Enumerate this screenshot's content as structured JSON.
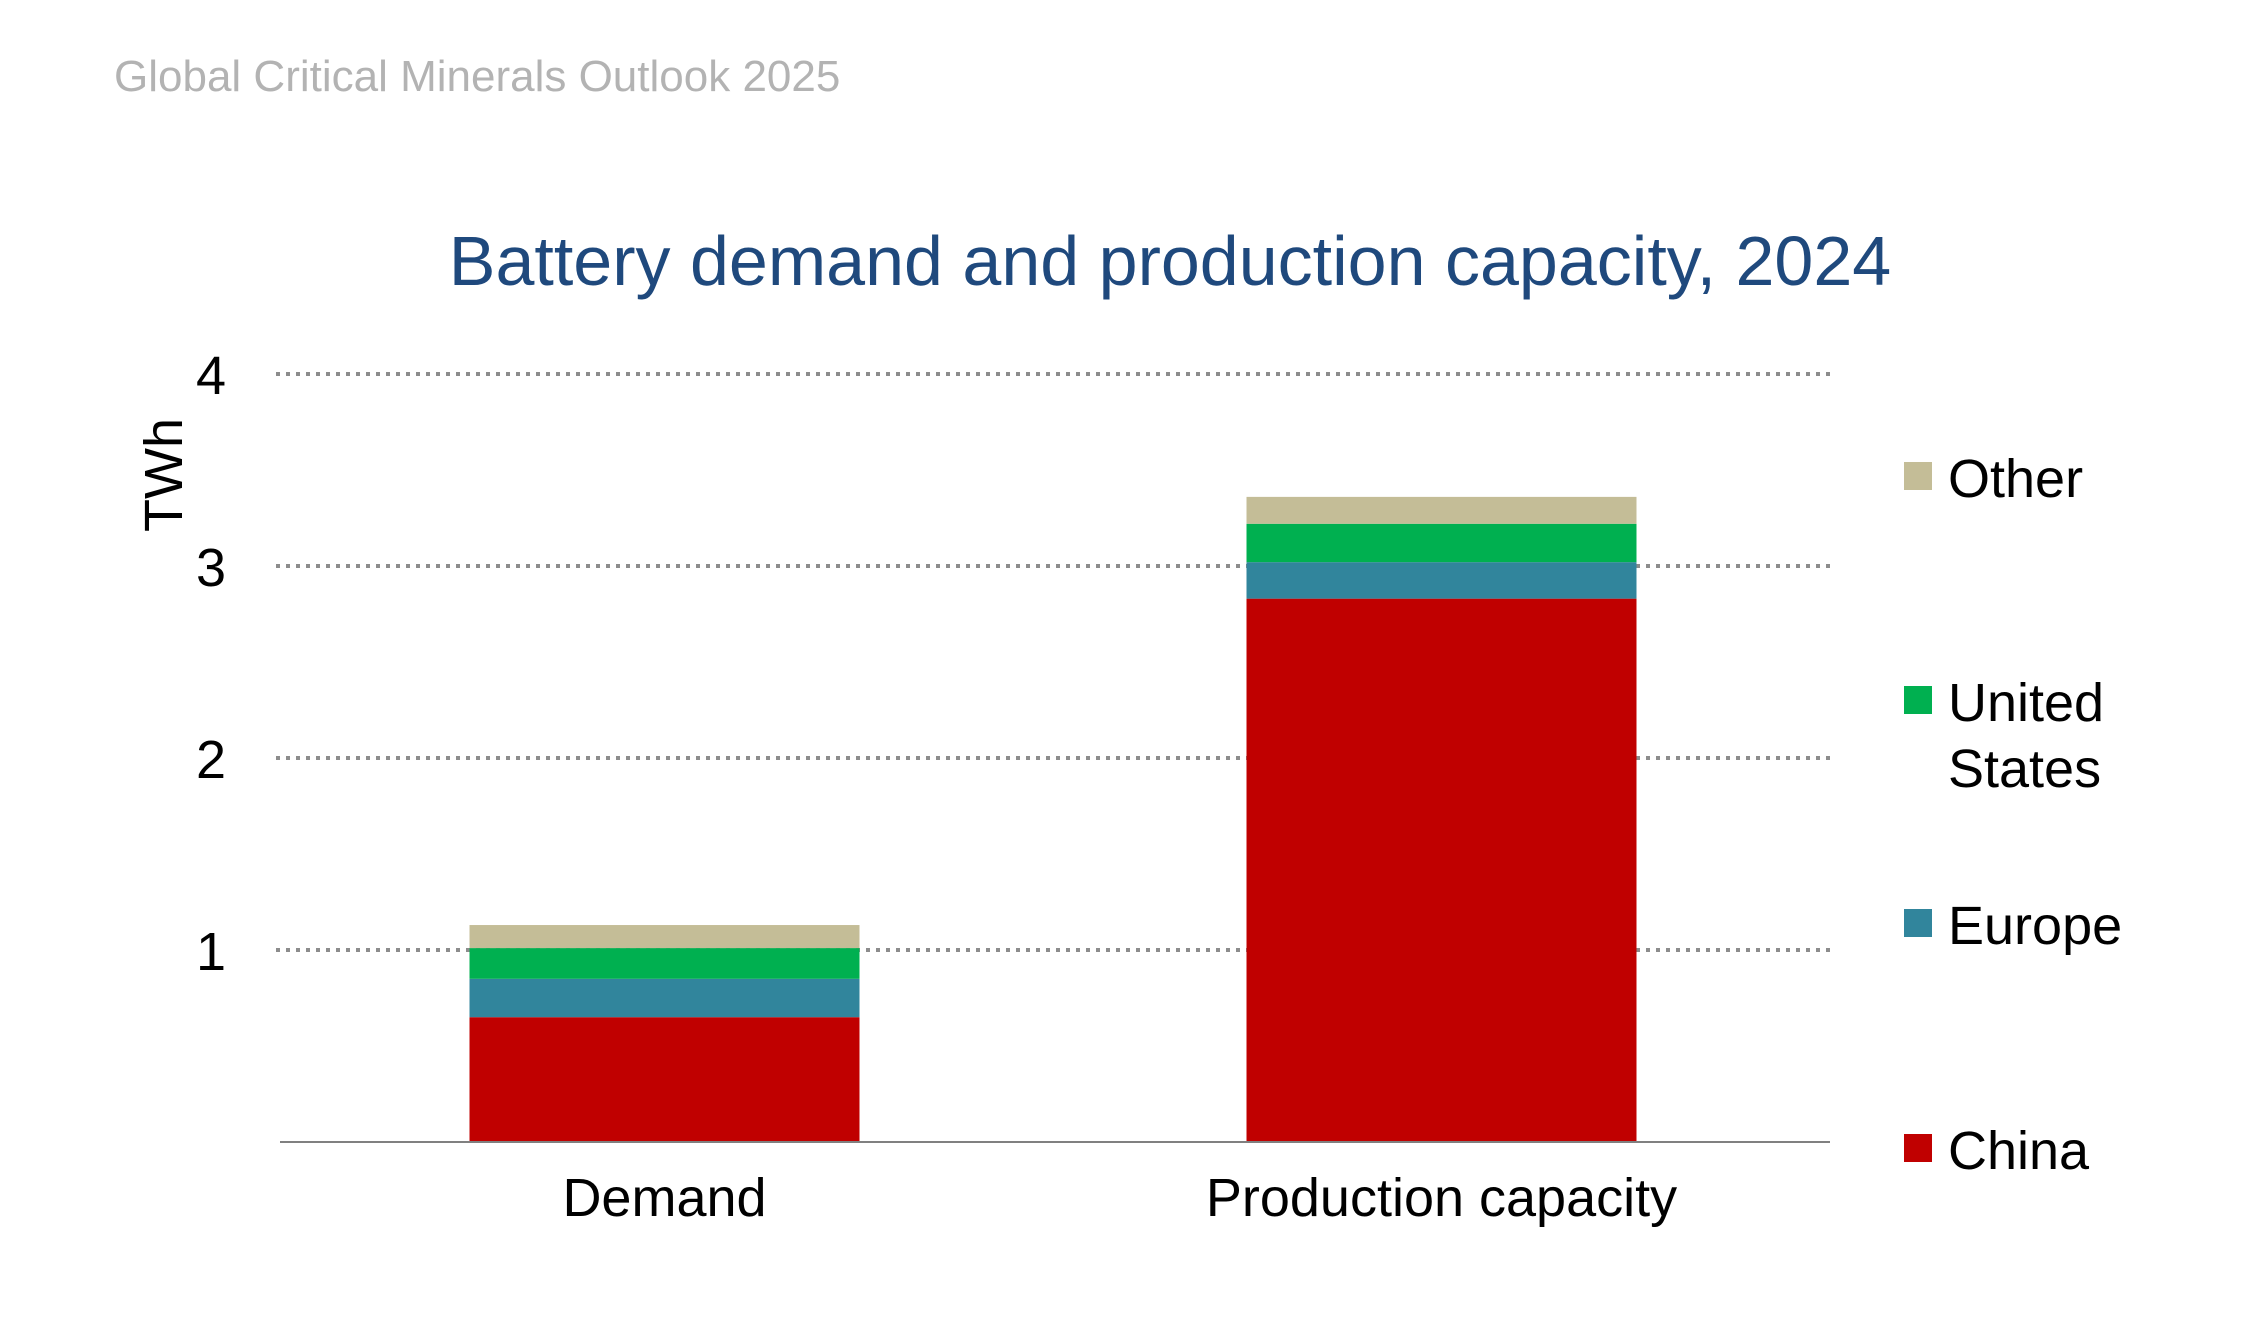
{
  "header": {
    "report_title": "Global Critical Minerals Outlook 2025"
  },
  "chart_data": {
    "type": "bar",
    "stacked": true,
    "title": "Battery demand and production capacity, 2024",
    "xlabel": "",
    "ylabel": "TWh",
    "ylim": [
      0,
      4
    ],
    "yticks": [
      1,
      2,
      3,
      4
    ],
    "ytick_labels": [
      "1",
      "2",
      "3",
      "4"
    ],
    "grid": true,
    "legend_position": "right",
    "categories": [
      "Demand",
      "Production capacity"
    ],
    "series": [
      {
        "name": "China",
        "color": "#c00000",
        "values": [
          0.65,
          2.83
        ]
      },
      {
        "name": "Europe",
        "color": "#31859c",
        "values": [
          0.2,
          0.19
        ]
      },
      {
        "name": "United States",
        "color": "#00b050",
        "values": [
          0.16,
          0.2
        ]
      },
      {
        "name": "Other",
        "color": "#c4bd97",
        "values": [
          0.12,
          0.14
        ]
      }
    ]
  },
  "legend": {
    "items": [
      {
        "label": "Other",
        "color": "#c4bd97"
      },
      {
        "label": "United States",
        "color": "#00b050"
      },
      {
        "label": "Europe",
        "color": "#31859c"
      },
      {
        "label": "China",
        "color": "#c00000"
      }
    ]
  }
}
